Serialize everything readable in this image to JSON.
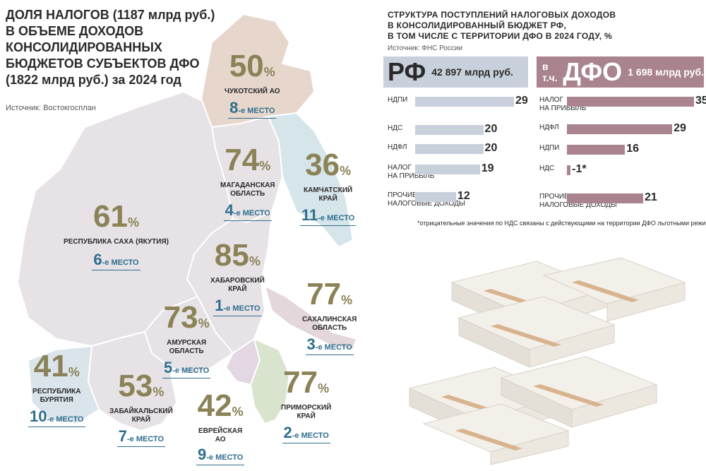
{
  "left": {
    "title_lines": [
      "ДОЛЯ НАЛОГОВ (1187 млрд руб.)",
      "В ОБЪЕМЕ ДОХОДОВ",
      "КОНСОЛИДИРОВАННЫХ",
      "БЮДЖЕТОВ СУБЪЕКТОВ ДФО",
      "(1822 млрд руб.) за 2024 год"
    ],
    "source": "Источник: Востокгосплан",
    "percent_symbol": "%",
    "rank_suffix": "-е МЕСТО"
  },
  "chart_data": [
    {
      "type": "map",
      "regions": [
        {
          "name_lines": [
            "ЧУКОТСКИЙ АО"
          ],
          "share": 50,
          "rank": 8
        },
        {
          "name_lines": [
            "МАГАДАНСКАЯ",
            "ОБЛАСТЬ"
          ],
          "share": 74,
          "rank": 4
        },
        {
          "name_lines": [
            "КАМЧАТСКИЙ",
            "КРАЙ"
          ],
          "share": 36,
          "rank": 11
        },
        {
          "name_lines": [
            "РЕСПУБЛИКА САХА (ЯКУТИЯ)"
          ],
          "share": 61,
          "rank": 6
        },
        {
          "name_lines": [
            "ХАБАРОВСКИЙ",
            "КРАЙ"
          ],
          "share": 85,
          "rank": 1
        },
        {
          "name_lines": [
            "САХАЛИНСКАЯ",
            "ОБЛАСТЬ"
          ],
          "share": 77,
          "rank": 3
        },
        {
          "name_lines": [
            "АМУРСКАЯ",
            "ОБЛАСТЬ"
          ],
          "share": 73,
          "rank": 5
        },
        {
          "name_lines": [
            "РЕСПУБЛИКА",
            "БУРЯТИЯ"
          ],
          "share": 41,
          "rank": 10
        },
        {
          "name_lines": [
            "ЗАБАЙКАЛЬСКИЙ",
            "КРАЙ"
          ],
          "share": 53,
          "rank": 7
        },
        {
          "name_lines": [
            "ЕВРЕЙСКАЯ",
            "АО"
          ],
          "share": 42,
          "rank": 9
        },
        {
          "name_lines": [
            "ПРИМОРСКИЙ",
            "КРАЙ"
          ],
          "share": 77,
          "rank": 2
        }
      ]
    },
    {
      "type": "bar",
      "orientation": "horizontal",
      "header_big": "РФ",
      "header_small": "42 897 млрд руб.",
      "color": "#c8d0dc",
      "categories": [
        [
          "НДПИ"
        ],
        [
          "НДС"
        ],
        [
          "НДФЛ"
        ],
        [
          "НАЛОГ",
          "НА ПРИБЫЛЬ"
        ],
        [
          "ПРОЧИЕ",
          "НАЛОГОВЫЕ ДОХОДЫ"
        ]
      ],
      "values": [
        29,
        20,
        20,
        19,
        12
      ],
      "value_labels": [
        "29",
        "20",
        "20",
        "19",
        "12"
      ]
    },
    {
      "type": "bar",
      "orientation": "horizontal",
      "header_prefix": "в т.ч.",
      "header_big": "ДФО",
      "header_small": "1 698 млрд руб.",
      "color": "#a9848e",
      "categories": [
        [
          "НАЛОГ",
          "НА ПРИБЫЛЬ"
        ],
        [
          "НДФЛ"
        ],
        [
          "НДПИ"
        ],
        [
          "НДС"
        ],
        [
          "ПРОЧИЕ",
          "НАЛОГОВЫЕ ДОХОДЫ"
        ]
      ],
      "values": [
        35,
        29,
        16,
        -1,
        21
      ],
      "value_labels": [
        "35",
        "29",
        "16",
        "-1*",
        "21"
      ]
    }
  ],
  "right": {
    "title_lines": [
      "СТРУКТУРА ПОСТУПЛЕНИЙ НАЛОГОВЫХ ДОХОДОВ",
      "В КОНСОЛИДИРОВАННЫЙ  БЮДЖЕТ РФ,",
      "В ТОМ ЧИСЛЕ С ТЕРРИТОРИИ ДФО В 2024 ГОДУ, %"
    ],
    "source": "Источник: ФНС России",
    "footnote": "*отрицательные значения по НДС связаны с действующими на территории ДФО льготными режимами"
  },
  "colors": {
    "percent": "#8b8257",
    "rank": "#2f6e8e",
    "rf_bar": "#c8d0dc",
    "dfo_bar": "#a9848e"
  }
}
